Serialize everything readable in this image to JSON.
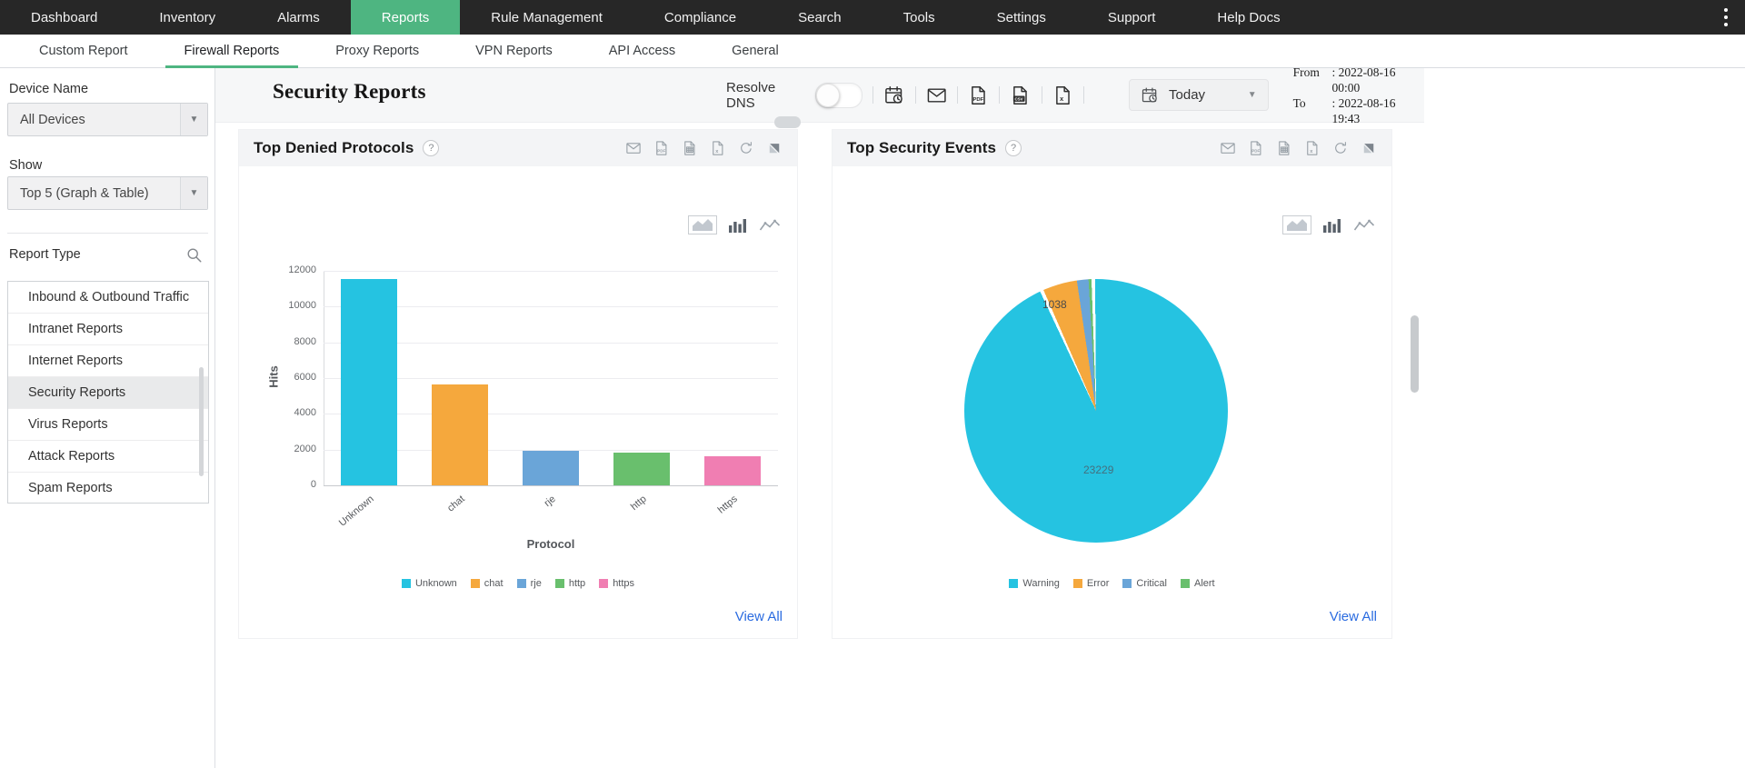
{
  "nav": {
    "items": [
      {
        "label": "Dashboard",
        "active": false
      },
      {
        "label": "Inventory",
        "active": false
      },
      {
        "label": "Alarms",
        "active": false
      },
      {
        "label": "Reports",
        "active": true
      },
      {
        "label": "Rule Management",
        "active": false
      },
      {
        "label": "Compliance",
        "active": false
      },
      {
        "label": "Search",
        "active": false
      },
      {
        "label": "Tools",
        "active": false
      },
      {
        "label": "Settings",
        "active": false
      },
      {
        "label": "Support",
        "active": false
      },
      {
        "label": "Help Docs",
        "active": false
      }
    ]
  },
  "tabs": {
    "items": [
      {
        "label": "Custom Report",
        "active": false
      },
      {
        "label": "Firewall Reports",
        "active": true
      },
      {
        "label": "Proxy Reports",
        "active": false
      },
      {
        "label": "VPN Reports",
        "active": false
      },
      {
        "label": "API Access",
        "active": false
      },
      {
        "label": "General",
        "active": false
      }
    ]
  },
  "sidebar": {
    "device_name_label": "Device Name",
    "device_value": "All Devices",
    "show_label": "Show",
    "show_value": "Top 5 (Graph & Table)",
    "report_type_label": "Report Type",
    "report_types": [
      {
        "label": "Inbound & Outbound Traffic",
        "selected": false
      },
      {
        "label": "Intranet Reports",
        "selected": false
      },
      {
        "label": "Internet Reports",
        "selected": false
      },
      {
        "label": "Security Reports",
        "selected": true
      },
      {
        "label": "Virus Reports",
        "selected": false
      },
      {
        "label": "Attack Reports",
        "selected": false
      },
      {
        "label": "Spam Reports",
        "selected": false
      }
    ]
  },
  "header": {
    "title": "Security Reports",
    "resolve_dns_label": "Resolve DNS",
    "toggle_state": "off",
    "icons": [
      "schedule-icon",
      "email-icon",
      "pdf-icon",
      "csv-icon",
      "excel-icon"
    ],
    "today_label": "Today",
    "from_label": "From",
    "from_value": ": 2022-08-16 00:00",
    "to_label": "To",
    "to_value": ": 2022-08-16 19:43"
  },
  "panels": [
    {
      "title": "Top Denied Protocols",
      "help": "?",
      "view_all": "View All",
      "icons": [
        "email-icon",
        "pdf-icon",
        "spreadsheet-icon",
        "excel-icon",
        "refresh-icon",
        "resize-icon"
      ]
    },
    {
      "title": "Top Security Events",
      "help": "?",
      "view_all": "View All",
      "icons": [
        "email-icon",
        "pdf-icon",
        "spreadsheet-icon",
        "excel-icon",
        "refresh-icon",
        "resize-icon"
      ]
    }
  ],
  "chart_data": [
    {
      "type": "bar",
      "title": "Top Denied Protocols",
      "categories": [
        "Unknown",
        "chat",
        "rje",
        "http",
        "https"
      ],
      "values": [
        11550,
        5650,
        1950,
        1850,
        1620
      ],
      "colors": [
        "#25c3e1",
        "#f5a83d",
        "#6aa5d8",
        "#69bf6d",
        "#f07eb2"
      ],
      "xlabel": "Protocol",
      "ylabel": "Hits",
      "ylim": [
        0,
        12000
      ],
      "ytick_step": 2000,
      "grid": true,
      "legend_position": "bottom"
    },
    {
      "type": "pie",
      "title": "Top Security Events",
      "labels": [
        "Warning",
        "Error",
        "Critical",
        "Alert"
      ],
      "values": [
        23229,
        1038,
        350,
        90
      ],
      "colors": [
        "#25c3e1",
        "#f5a83d",
        "#6aa5d8",
        "#69bf6d"
      ],
      "data_labels": [
        {
          "slice": "Warning",
          "text": "23229"
        },
        {
          "slice": "Error",
          "text": "1038"
        }
      ],
      "legend_position": "bottom"
    }
  ],
  "colors": {
    "accent_green": "#4eb581",
    "link_blue": "#2a6be0",
    "nav_bg": "#272727",
    "panel_header_bg": "#f3f4f6",
    "header_band_bg": "#f6f7f8"
  }
}
